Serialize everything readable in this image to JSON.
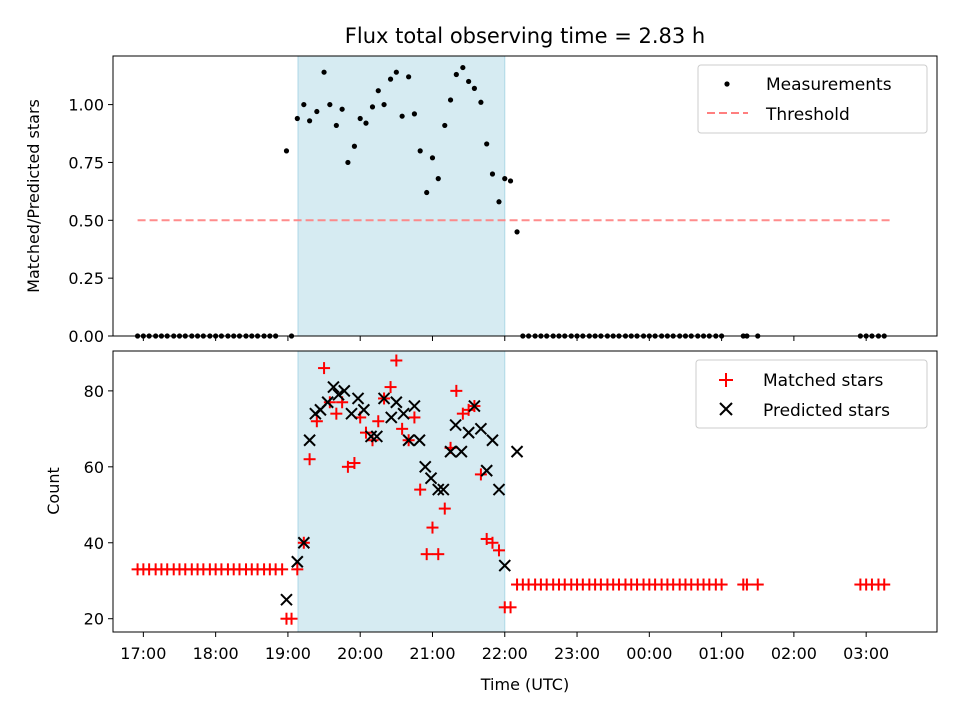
{
  "chart_data": {
    "type": "scatter",
    "title": "Flux total observing time = 2.83 h",
    "xlabel": "Time (UTC)",
    "x_ticks": [
      {
        "t": 17.0,
        "label": "17:00"
      },
      {
        "t": 18.0,
        "label": "18:00"
      },
      {
        "t": 19.0,
        "label": "19:00"
      },
      {
        "t": 20.0,
        "label": "20:00"
      },
      {
        "t": 21.0,
        "label": "21:00"
      },
      {
        "t": 22.0,
        "label": "22:00"
      },
      {
        "t": 23.0,
        "label": "23:00"
      },
      {
        "t": 24.0,
        "label": "00:00"
      },
      {
        "t": 25.0,
        "label": "01:00"
      },
      {
        "t": 26.0,
        "label": "02:00"
      },
      {
        "t": 27.0,
        "label": "03:00"
      }
    ],
    "xlim": [
      16.58,
      27.98
    ],
    "shaded_interval": {
      "start": 19.14,
      "end": 22.0,
      "color": "#add8e6"
    },
    "top_panel": {
      "ylabel": "Matched/Predicted stars",
      "ylim": [
        0.0,
        1.21
      ],
      "y_ticks": [
        {
          "v": 0.0,
          "label": "0.00"
        },
        {
          "v": 0.25,
          "label": "0.25"
        },
        {
          "v": 0.5,
          "label": "0.50"
        },
        {
          "v": 0.75,
          "label": "0.75"
        },
        {
          "v": 1.0,
          "label": "1.00"
        }
      ],
      "threshold": {
        "value": 0.5,
        "x_range": [
          16.92,
          27.33
        ],
        "color": "#ff7f7f"
      },
      "legend": [
        {
          "label": "Measurements",
          "marker": "dot",
          "color": "#000000"
        },
        {
          "label": "Threshold",
          "marker": "dashed-line",
          "color": "#ff7f7f"
        }
      ],
      "measurements": [
        [
          16.92,
          0
        ],
        [
          17.0,
          0
        ],
        [
          17.08,
          0
        ],
        [
          17.17,
          0
        ],
        [
          17.25,
          0
        ],
        [
          17.33,
          0
        ],
        [
          17.42,
          0
        ],
        [
          17.5,
          0
        ],
        [
          17.58,
          0
        ],
        [
          17.67,
          0
        ],
        [
          17.75,
          0
        ],
        [
          17.83,
          0
        ],
        [
          17.92,
          0
        ],
        [
          18.0,
          0
        ],
        [
          18.08,
          0
        ],
        [
          18.17,
          0
        ],
        [
          18.25,
          0
        ],
        [
          18.33,
          0
        ],
        [
          18.42,
          0
        ],
        [
          18.5,
          0
        ],
        [
          18.58,
          0
        ],
        [
          18.67,
          0
        ],
        [
          18.75,
          0
        ],
        [
          18.83,
          0
        ],
        [
          18.98,
          0.8
        ],
        [
          19.05,
          0
        ],
        [
          19.13,
          0.94
        ],
        [
          19.22,
          1.0
        ],
        [
          19.3,
          0.93
        ],
        [
          19.4,
          0.97
        ],
        [
          19.5,
          1.14
        ],
        [
          19.58,
          1.0
        ],
        [
          19.67,
          0.91
        ],
        [
          19.75,
          0.98
        ],
        [
          19.83,
          0.75
        ],
        [
          19.92,
          0.82
        ],
        [
          20.0,
          0.94
        ],
        [
          20.08,
          0.92
        ],
        [
          20.17,
          0.99
        ],
        [
          20.25,
          1.06
        ],
        [
          20.33,
          1.0
        ],
        [
          20.42,
          1.11
        ],
        [
          20.5,
          1.14
        ],
        [
          20.58,
          0.95
        ],
        [
          20.67,
          1.12
        ],
        [
          20.75,
          0.96
        ],
        [
          20.83,
          0.8
        ],
        [
          20.92,
          0.62
        ],
        [
          21.0,
          0.77
        ],
        [
          21.08,
          0.68
        ],
        [
          21.17,
          0.91
        ],
        [
          21.25,
          1.02
        ],
        [
          21.33,
          1.13
        ],
        [
          21.42,
          1.16
        ],
        [
          21.5,
          1.1
        ],
        [
          21.58,
          1.07
        ],
        [
          21.67,
          1.01
        ],
        [
          21.75,
          0.83
        ],
        [
          21.83,
          0.7
        ],
        [
          21.92,
          0.58
        ],
        [
          22.0,
          0.68
        ],
        [
          22.08,
          0.67
        ],
        [
          22.17,
          0.45
        ],
        [
          22.25,
          0
        ],
        [
          22.33,
          0
        ],
        [
          22.42,
          0
        ],
        [
          22.5,
          0
        ],
        [
          22.58,
          0
        ],
        [
          22.67,
          0
        ],
        [
          22.75,
          0
        ],
        [
          22.83,
          0
        ],
        [
          22.92,
          0
        ],
        [
          23.0,
          0
        ],
        [
          23.08,
          0
        ],
        [
          23.17,
          0
        ],
        [
          23.25,
          0
        ],
        [
          23.33,
          0
        ],
        [
          23.42,
          0
        ],
        [
          23.5,
          0
        ],
        [
          23.58,
          0
        ],
        [
          23.67,
          0
        ],
        [
          23.75,
          0
        ],
        [
          23.83,
          0
        ],
        [
          23.92,
          0
        ],
        [
          24.0,
          0
        ],
        [
          24.08,
          0
        ],
        [
          24.17,
          0
        ],
        [
          24.25,
          0
        ],
        [
          24.33,
          0
        ],
        [
          24.42,
          0
        ],
        [
          24.5,
          0
        ],
        [
          24.58,
          0
        ],
        [
          24.67,
          0
        ],
        [
          24.75,
          0
        ],
        [
          24.83,
          0
        ],
        [
          24.92,
          0
        ],
        [
          25.0,
          0
        ],
        [
          25.3,
          0
        ],
        [
          25.35,
          0
        ],
        [
          25.5,
          0
        ],
        [
          26.92,
          0
        ],
        [
          27.0,
          0
        ],
        [
          27.08,
          0
        ],
        [
          27.17,
          0
        ],
        [
          27.25,
          0
        ]
      ]
    },
    "bottom_panel": {
      "ylabel": "Count",
      "ylim": [
        16.5,
        90.5
      ],
      "y_ticks": [
        {
          "v": 20,
          "label": "20"
        },
        {
          "v": 40,
          "label": "40"
        },
        {
          "v": 60,
          "label": "60"
        },
        {
          "v": 80,
          "label": "80"
        }
      ],
      "legend": [
        {
          "label": "Matched stars",
          "marker": "plus",
          "color": "#ff0000"
        },
        {
          "label": "Predicted stars",
          "marker": "cross",
          "color": "#000000"
        }
      ],
      "series": [
        {
          "name": "Matched stars",
          "marker": "plus",
          "color": "#ff0000",
          "points": [
            [
              16.92,
              33
            ],
            [
              17.0,
              33
            ],
            [
              17.08,
              33
            ],
            [
              17.17,
              33
            ],
            [
              17.25,
              33
            ],
            [
              17.33,
              33
            ],
            [
              17.42,
              33
            ],
            [
              17.5,
              33
            ],
            [
              17.58,
              33
            ],
            [
              17.67,
              33
            ],
            [
              17.75,
              33
            ],
            [
              17.83,
              33
            ],
            [
              17.92,
              33
            ],
            [
              18.0,
              33
            ],
            [
              18.08,
              33
            ],
            [
              18.17,
              33
            ],
            [
              18.25,
              33
            ],
            [
              18.33,
              33
            ],
            [
              18.42,
              33
            ],
            [
              18.5,
              33
            ],
            [
              18.58,
              33
            ],
            [
              18.67,
              33
            ],
            [
              18.75,
              33
            ],
            [
              18.83,
              33
            ],
            [
              18.92,
              33
            ],
            [
              18.98,
              20
            ],
            [
              19.05,
              20
            ],
            [
              19.13,
              33
            ],
            [
              19.22,
              40
            ],
            [
              19.3,
              62
            ],
            [
              19.4,
              72
            ],
            [
              19.5,
              86
            ],
            [
              19.58,
              77
            ],
            [
              19.67,
              74
            ],
            [
              19.75,
              77
            ],
            [
              19.83,
              60
            ],
            [
              19.92,
              61
            ],
            [
              20.0,
              73
            ],
            [
              20.08,
              69
            ],
            [
              20.17,
              67
            ],
            [
              20.25,
              72
            ],
            [
              20.33,
              78
            ],
            [
              20.42,
              81
            ],
            [
              20.5,
              88
            ],
            [
              20.58,
              70
            ],
            [
              20.67,
              67
            ],
            [
              20.75,
              73
            ],
            [
              20.83,
              54
            ],
            [
              20.92,
              37
            ],
            [
              21.0,
              44
            ],
            [
              21.08,
              37
            ],
            [
              21.17,
              49
            ],
            [
              21.25,
              65
            ],
            [
              21.33,
              80
            ],
            [
              21.42,
              74
            ],
            [
              21.5,
              75
            ],
            [
              21.58,
              76
            ],
            [
              21.67,
              58
            ],
            [
              21.75,
              41
            ],
            [
              21.83,
              40
            ],
            [
              21.92,
              38
            ],
            [
              22.0,
              23
            ],
            [
              22.08,
              23
            ],
            [
              22.17,
              29
            ],
            [
              22.25,
              29
            ],
            [
              22.33,
              29
            ],
            [
              22.42,
              29
            ],
            [
              22.5,
              29
            ],
            [
              22.58,
              29
            ],
            [
              22.67,
              29
            ],
            [
              22.75,
              29
            ],
            [
              22.83,
              29
            ],
            [
              22.92,
              29
            ],
            [
              23.0,
              29
            ],
            [
              23.08,
              29
            ],
            [
              23.17,
              29
            ],
            [
              23.25,
              29
            ],
            [
              23.33,
              29
            ],
            [
              23.42,
              29
            ],
            [
              23.5,
              29
            ],
            [
              23.58,
              29
            ],
            [
              23.67,
              29
            ],
            [
              23.75,
              29
            ],
            [
              23.83,
              29
            ],
            [
              23.92,
              29
            ],
            [
              24.0,
              29
            ],
            [
              24.08,
              29
            ],
            [
              24.17,
              29
            ],
            [
              24.25,
              29
            ],
            [
              24.33,
              29
            ],
            [
              24.42,
              29
            ],
            [
              24.5,
              29
            ],
            [
              24.58,
              29
            ],
            [
              24.67,
              29
            ],
            [
              24.75,
              29
            ],
            [
              24.83,
              29
            ],
            [
              24.92,
              29
            ],
            [
              25.0,
              29
            ],
            [
              25.3,
              29
            ],
            [
              25.35,
              29
            ],
            [
              25.5,
              29
            ],
            [
              26.92,
              29
            ],
            [
              27.0,
              29
            ],
            [
              27.08,
              29
            ],
            [
              27.17,
              29
            ],
            [
              27.25,
              29
            ]
          ]
        },
        {
          "name": "Predicted stars",
          "marker": "cross",
          "color": "#000000",
          "points": [
            [
              18.98,
              25
            ],
            [
              19.13,
              35
            ],
            [
              19.22,
              40
            ],
            [
              19.3,
              67
            ],
            [
              19.38,
              74
            ],
            [
              19.45,
              75
            ],
            [
              19.55,
              77
            ],
            [
              19.63,
              81
            ],
            [
              19.7,
              79
            ],
            [
              19.78,
              80
            ],
            [
              19.88,
              74
            ],
            [
              19.97,
              78
            ],
            [
              20.05,
              75
            ],
            [
              20.15,
              68
            ],
            [
              20.23,
              68
            ],
            [
              20.33,
              78
            ],
            [
              20.43,
              73
            ],
            [
              20.5,
              77
            ],
            [
              20.6,
              74
            ],
            [
              20.67,
              67
            ],
            [
              20.75,
              76
            ],
            [
              20.82,
              67
            ],
            [
              20.9,
              60
            ],
            [
              20.98,
              57
            ],
            [
              21.08,
              54
            ],
            [
              21.15,
              54
            ],
            [
              21.25,
              64
            ],
            [
              21.32,
              71
            ],
            [
              21.4,
              64
            ],
            [
              21.5,
              69
            ],
            [
              21.58,
              76
            ],
            [
              21.67,
              70
            ],
            [
              21.75,
              59
            ],
            [
              21.83,
              67
            ],
            [
              21.92,
              54
            ],
            [
              22.0,
              34
            ],
            [
              22.17,
              64
            ]
          ]
        }
      ]
    }
  }
}
